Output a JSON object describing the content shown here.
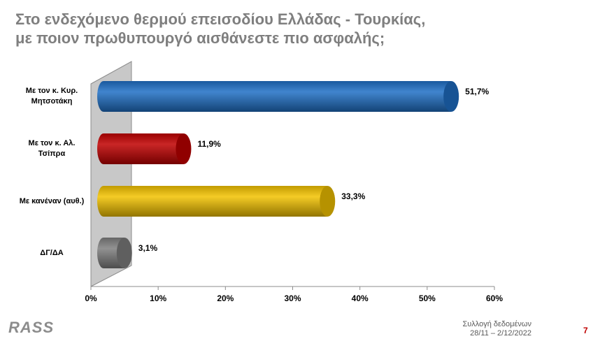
{
  "chart_data": {
    "type": "bar",
    "orientation": "horizontal",
    "title": "Στο ενδεχόμενο θερμού επεισοδίου Ελλάδας - Τουρκίας, με ποιον πρωθυπουργό αισθάνεστε πιο ασφαλής;",
    "categories": [
      "Με τον κ. Κυρ. Μητσοτάκη",
      "Με τον κ. Αλ. Τσίπρα",
      "Με κανέναν (αυθ.)",
      "ΔΓ/ΔΑ"
    ],
    "values": [
      51.7,
      11.9,
      33.3,
      3.1
    ],
    "value_labels": [
      "51,7%",
      "11,9%",
      "33,3%",
      "3,1%"
    ],
    "colors": [
      "#1f6fc5",
      "#c00000",
      "#f2c200",
      "#7f7f7f"
    ],
    "xlim": [
      0,
      60
    ],
    "xticks": [
      {
        "value": 0,
        "label": "0%"
      },
      {
        "value": 10,
        "label": "10%"
      },
      {
        "value": 20,
        "label": "20%"
      },
      {
        "value": 30,
        "label": "30%"
      },
      {
        "value": 40,
        "label": "40%"
      },
      {
        "value": 50,
        "label": "50%"
      },
      {
        "value": 60,
        "label": "60%"
      }
    ],
    "grid": false
  },
  "footer": {
    "note": "Συλλογή δεδομένων",
    "dates": "28/11 – 2/12/2022",
    "page": "7"
  },
  "logo": "RASS"
}
